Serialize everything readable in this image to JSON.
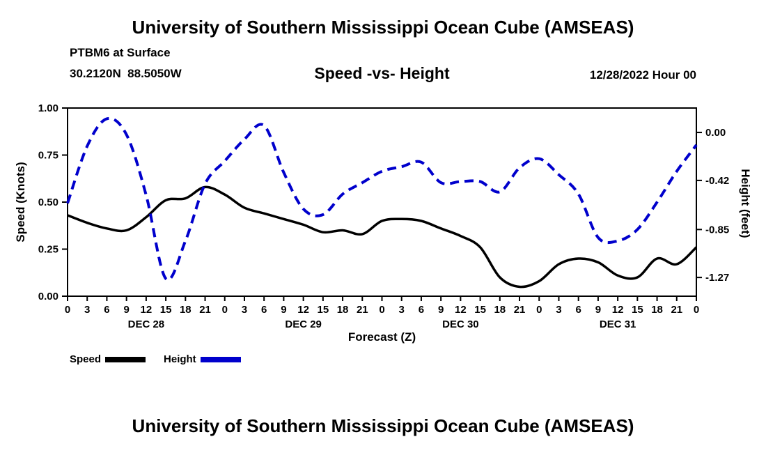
{
  "header": {
    "title": "University of Southern Mississippi Ocean Cube (AMSEAS)",
    "station": "PTBM6 at Surface",
    "coordinates": "30.2120N  88.5050W",
    "plot_title": "Speed -vs- Height",
    "datetime": "12/28/2022 Hour 00"
  },
  "legend": {
    "speed_label": "Speed",
    "height_label": "Height",
    "speed_color": "#000000",
    "height_color": "#0000cc"
  },
  "footer": {
    "next_chart_title": "University of Southern Mississippi Ocean Cube (AMSEAS)"
  },
  "chart_data": {
    "type": "line",
    "title": "Speed -vs- Height",
    "xlabel": "Forecast (Z)",
    "ylabel_left": "Speed (Knots)",
    "ylabel_right": "Height (feet)",
    "x_hours": [
      0,
      3,
      6,
      9,
      12,
      15,
      18,
      21,
      24,
      27,
      30,
      33,
      36,
      39,
      42,
      45,
      48,
      51,
      54,
      57,
      60,
      63,
      66,
      69,
      72,
      75,
      78,
      81,
      84,
      87,
      90,
      93,
      96
    ],
    "x_tick_labels": [
      "0",
      "3",
      "6",
      "9",
      "12",
      "15",
      "18",
      "21",
      "0",
      "3",
      "6",
      "9",
      "12",
      "15",
      "18",
      "21",
      "0",
      "3",
      "6",
      "9",
      "12",
      "15",
      "18",
      "21",
      "0",
      "3",
      "6",
      "9",
      "12",
      "15",
      "18",
      "21",
      "0"
    ],
    "day_labels": [
      "DEC 28",
      "DEC 29",
      "DEC 30",
      "DEC 31"
    ],
    "day_center_hours": [
      12,
      36,
      60,
      84
    ],
    "y_left_lim": [
      0.0,
      1.0
    ],
    "y_left_tick_values": [
      0.0,
      0.25,
      0.5,
      0.75,
      1.0
    ],
    "y_left_tick_labels": [
      "0.00",
      "0.25",
      "0.50",
      "0.75",
      "1.00"
    ],
    "y_right_lim": [
      -1.434,
      0.214
    ],
    "y_right_tick_values": [
      0.0,
      -0.42,
      -0.85,
      -1.27
    ],
    "y_right_tick_labels": [
      "0.00",
      "-0.42",
      "-0.85",
      "-1.27"
    ],
    "grid": false,
    "legend_position": "below",
    "series": [
      {
        "name": "Speed",
        "axis": "left",
        "color": "#000000",
        "style": "solid",
        "values": [
          0.43,
          0.39,
          0.36,
          0.35,
          0.42,
          0.51,
          0.52,
          0.58,
          0.54,
          0.47,
          0.44,
          0.41,
          0.38,
          0.34,
          0.35,
          0.33,
          0.4,
          0.41,
          0.4,
          0.36,
          0.32,
          0.26,
          0.1,
          0.05,
          0.08,
          0.17,
          0.2,
          0.18,
          0.11,
          0.1,
          0.2,
          0.17,
          0.26
        ]
      },
      {
        "name": "Height",
        "axis": "right",
        "color": "#0000cc",
        "style": "dashed",
        "values": [
          -0.62,
          -0.12,
          0.12,
          -0.02,
          -0.55,
          -1.28,
          -0.95,
          -0.45,
          -0.25,
          -0.06,
          0.06,
          -0.35,
          -0.67,
          -0.72,
          -0.54,
          -0.44,
          -0.34,
          -0.3,
          -0.26,
          -0.44,
          -0.43,
          -0.43,
          -0.52,
          -0.31,
          -0.23,
          -0.37,
          -0.54,
          -0.92,
          -0.95,
          -0.85,
          -0.61,
          -0.34,
          -0.11
        ]
      }
    ]
  }
}
